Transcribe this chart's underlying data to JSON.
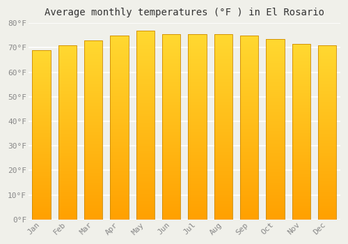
{
  "title": "Average monthly temperatures (°F ) in El Rosario",
  "months": [
    "Jan",
    "Feb",
    "Mar",
    "Apr",
    "May",
    "Jun",
    "Jul",
    "Aug",
    "Sep",
    "Oct",
    "Nov",
    "Dec"
  ],
  "temperatures": [
    69,
    71,
    73,
    75,
    77,
    75.5,
    75.5,
    75.5,
    75,
    73.5,
    71.5,
    71
  ],
  "bar_color_bottom": "#FFA500",
  "bar_color_top": "#FFE060",
  "bar_border_color": "#CC8800",
  "ylim": [
    0,
    80
  ],
  "yticks": [
    0,
    10,
    20,
    30,
    40,
    50,
    60,
    70,
    80
  ],
  "ytick_labels": [
    "0°F",
    "10°F",
    "20°F",
    "30°F",
    "40°F",
    "50°F",
    "60°F",
    "70°F",
    "80°F"
  ],
  "bg_color": "#F0F0EA",
  "grid_color": "#FFFFFF",
  "title_fontsize": 10,
  "tick_fontsize": 8,
  "tick_color": "#888888",
  "font_family": "monospace",
  "bar_width": 0.7,
  "figsize": [
    5.0,
    3.5
  ],
  "dpi": 100
}
